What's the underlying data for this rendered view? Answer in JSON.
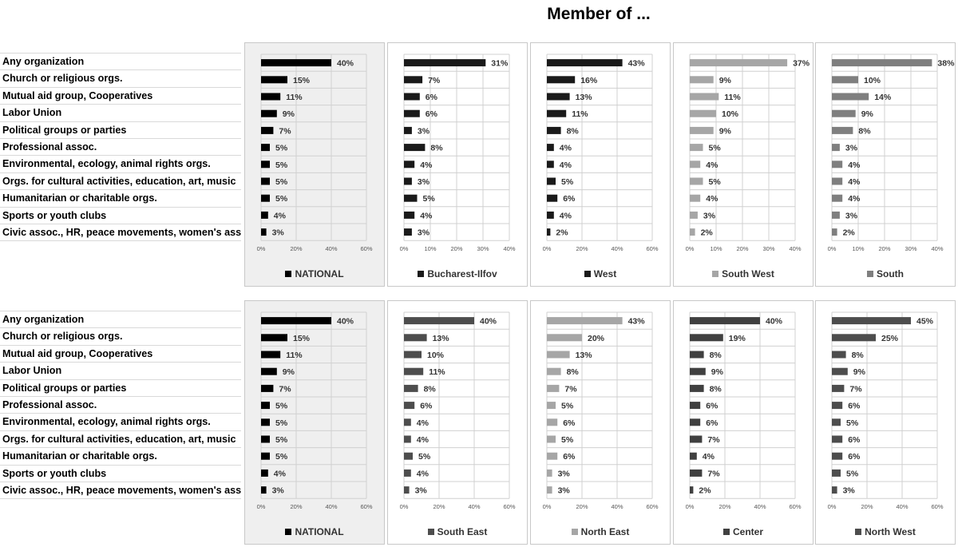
{
  "title": "Member of ...",
  "categories": [
    "Any organization",
    "Church or religious orgs.",
    "Mutual aid group, Cooperatives",
    "Labor Union",
    "Political groups or parties",
    "Professional assoc.",
    "Environmental, ecology, animal rights orgs.",
    "Orgs. for cultural activities, education, art, music",
    "Humanitarian or charitable orgs.",
    "Sports or youth clubs",
    "Civic assoc., HR, peace movements, women's assoc."
  ],
  "chart_data": [
    {
      "type": "bar",
      "orientation": "horizontal",
      "row": 1,
      "series": [
        {
          "name": "NATIONAL",
          "values": [
            40,
            15,
            11,
            9,
            7,
            5,
            5,
            5,
            5,
            4,
            3
          ]
        }
      ],
      "xlim": [
        0,
        60
      ],
      "xticks": [
        "0%",
        "20%",
        "40%",
        "60%"
      ],
      "color": "#000000",
      "legend": "bottom",
      "shaded_background": true
    },
    {
      "type": "bar",
      "orientation": "horizontal",
      "row": 1,
      "series": [
        {
          "name": "Bucharest-Ilfov",
          "values": [
            31,
            7,
            6,
            6,
            3,
            8,
            4,
            3,
            5,
            4,
            3
          ]
        }
      ],
      "xlim": [
        0,
        40
      ],
      "xticks": [
        "0%",
        "10%",
        "20%",
        "30%",
        "40%"
      ],
      "color": "#1a1a1a",
      "legend": "bottom"
    },
    {
      "type": "bar",
      "orientation": "horizontal",
      "row": 1,
      "series": [
        {
          "name": "West",
          "values": [
            43,
            16,
            13,
            11,
            8,
            4,
            4,
            5,
            6,
            4,
            2
          ]
        }
      ],
      "xlim": [
        0,
        60
      ],
      "xticks": [
        "0%",
        "20%",
        "40%",
        "60%"
      ],
      "color": "#1a1a1a",
      "legend": "bottom"
    },
    {
      "type": "bar",
      "orientation": "horizontal",
      "row": 1,
      "series": [
        {
          "name": "South West",
          "values": [
            37,
            9,
            11,
            10,
            9,
            5,
            4,
            5,
            4,
            3,
            2
          ]
        }
      ],
      "xlim": [
        0,
        40
      ],
      "xticks": [
        "0%",
        "10%",
        "20%",
        "30%",
        "40%"
      ],
      "color": "#a6a6a6",
      "legend": "bottom"
    },
    {
      "type": "bar",
      "orientation": "horizontal",
      "row": 1,
      "series": [
        {
          "name": "South",
          "values": [
            38,
            10,
            14,
            9,
            8,
            3,
            4,
            4,
            4,
            3,
            2
          ]
        }
      ],
      "xlim": [
        0,
        40
      ],
      "xticks": [
        "0%",
        "10%",
        "20%",
        "30%",
        "40%"
      ],
      "color": "#7f7f7f",
      "legend": "bottom"
    },
    {
      "type": "bar",
      "orientation": "horizontal",
      "row": 2,
      "series": [
        {
          "name": "NATIONAL",
          "values": [
            40,
            15,
            11,
            9,
            7,
            5,
            5,
            5,
            5,
            4,
            3
          ]
        }
      ],
      "xlim": [
        0,
        60
      ],
      "xticks": [
        "0%",
        "20%",
        "40%",
        "60%"
      ],
      "color": "#000000",
      "legend": "bottom",
      "shaded_background": true
    },
    {
      "type": "bar",
      "orientation": "horizontal",
      "row": 2,
      "series": [
        {
          "name": "South East",
          "values": [
            40,
            13,
            10,
            11,
            8,
            6,
            4,
            4,
            5,
            4,
            3
          ]
        }
      ],
      "xlim": [
        0,
        60
      ],
      "xticks": [
        "0%",
        "20%",
        "40%",
        "60%"
      ],
      "color": "#4d4d4d",
      "legend": "bottom"
    },
    {
      "type": "bar",
      "orientation": "horizontal",
      "row": 2,
      "series": [
        {
          "name": "North East",
          "values": [
            43,
            20,
            13,
            8,
            7,
            5,
            6,
            5,
            6,
            3,
            3
          ]
        }
      ],
      "xlim": [
        0,
        60
      ],
      "xticks": [
        "0%",
        "20%",
        "40%",
        "60%"
      ],
      "color": "#a6a6a6",
      "legend": "bottom"
    },
    {
      "type": "bar",
      "orientation": "horizontal",
      "row": 2,
      "series": [
        {
          "name": "Center",
          "values": [
            40,
            19,
            8,
            9,
            8,
            6,
            6,
            7,
            4,
            7,
            2
          ]
        }
      ],
      "xlim": [
        0,
        60
      ],
      "xticks": [
        "0%",
        "20%",
        "40%",
        "60%"
      ],
      "color": "#404040",
      "legend": "bottom"
    },
    {
      "type": "bar",
      "orientation": "horizontal",
      "row": 2,
      "series": [
        {
          "name": "North West",
          "values": [
            45,
            25,
            8,
            9,
            7,
            6,
            5,
            6,
            6,
            5,
            3
          ]
        }
      ],
      "xlim": [
        0,
        60
      ],
      "xticks": [
        "0%",
        "20%",
        "40%",
        "60%"
      ],
      "color": "#4d4d4d",
      "legend": "bottom"
    }
  ]
}
